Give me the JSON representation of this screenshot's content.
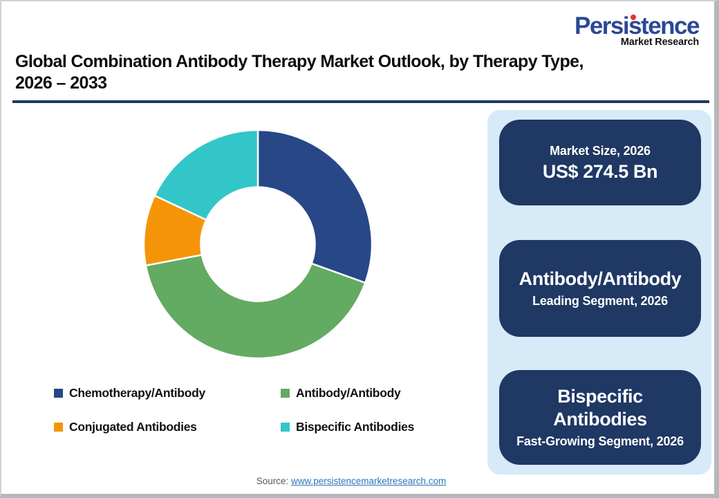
{
  "logo": {
    "brand": "Persistence",
    "sub": "Market Research",
    "brand_color": "#2b4897",
    "dot_color": "#e8302e"
  },
  "header": {
    "title_lines": [
      "Global Combination Antibody Therapy Market Outlook, by Therapy Type,",
      "2026 – 2033"
    ],
    "rule_color": "#1f3864"
  },
  "chart_data": {
    "type": "pie",
    "variant": "donut",
    "title": "Global Combination Antibody Therapy Market Outlook, by Therapy Type, 2026 – 2033",
    "segments": [
      {
        "label": "Chemotherapy/Antibody",
        "value": 30.5,
        "color": "#274787"
      },
      {
        "label": "Antibody/Antibody",
        "value": 41.5,
        "color": "#63aa63"
      },
      {
        "label": "Conjugated Antibodies",
        "value": 10.0,
        "color": "#f69408"
      },
      {
        "label": "Bispecific Antibodies",
        "value": 18.0,
        "color": "#32c6c8"
      }
    ],
    "note": "Segment shares estimated from arc angles; no data labels shown in chart",
    "start_angle_deg": 0,
    "direction": "clockwise",
    "inner_radius_ratio": 0.5,
    "gap_stroke_color": "#ffffff",
    "legend_position": "below, two columns"
  },
  "legend": {
    "items": [
      {
        "label": "Chemotherapy/Antibody",
        "color": "#274787"
      },
      {
        "label": "Antibody/Antibody",
        "color": "#63aa63"
      },
      {
        "label": "Conjugated Antibodies",
        "color": "#f69408"
      },
      {
        "label": "Bispecific Antibodies",
        "color": "#32c6c8"
      }
    ]
  },
  "side_panel": {
    "bg_color": "#d6eaf8",
    "card_color": "#1f3864",
    "cards": [
      {
        "label": "Market Size, 2026",
        "value": "US$ 274.5 Bn"
      },
      {
        "label": "Leading Segment, 2026",
        "value": "Antibody/Antibody"
      },
      {
        "label": "Fast-Growing Segment, 2026",
        "value": "Bispecific Antibodies"
      }
    ]
  },
  "footer": {
    "source_prefix": "Source: ",
    "source_link": "www.persistencemarketresearch.com",
    "link_color": "#2e75b6"
  }
}
